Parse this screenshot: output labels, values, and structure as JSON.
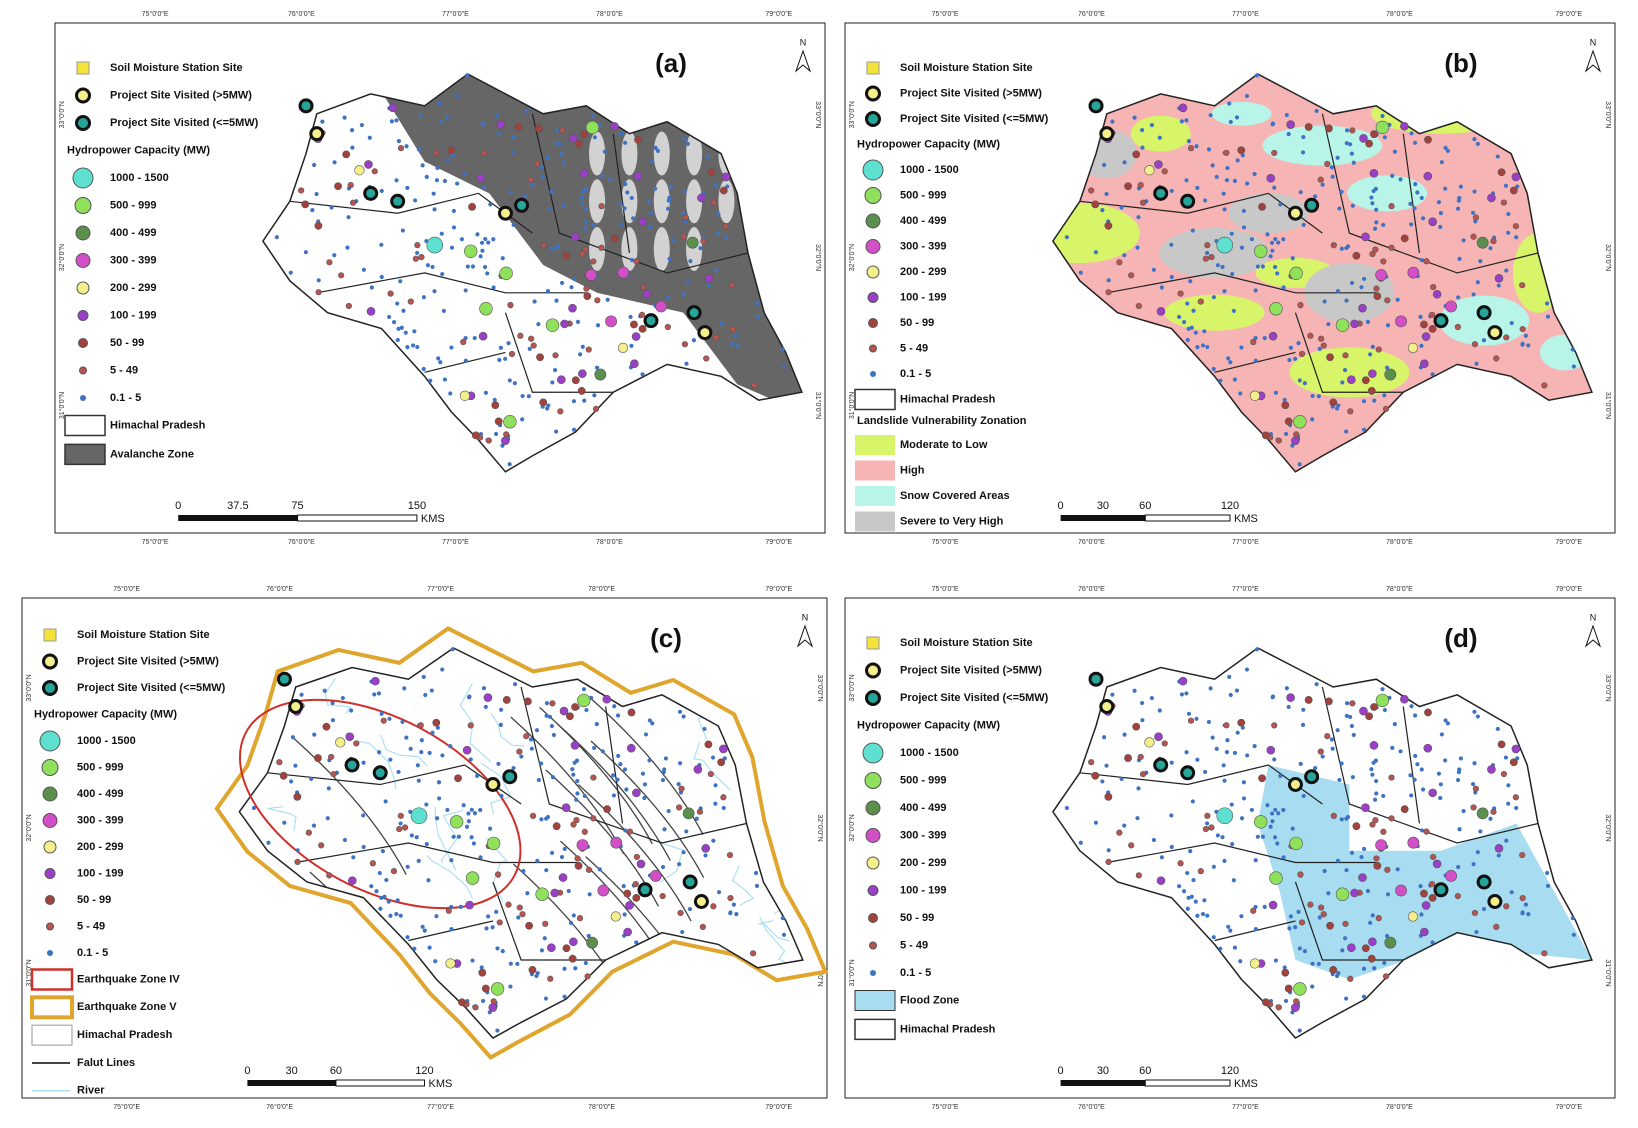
{
  "graticule": {
    "lon": [
      "75°0'0\"E",
      "76°0'0\"E",
      "77°0'0\"E",
      "78°0'0\"E",
      "79°0'0\"E"
    ],
    "lat": [
      "33°0'0\"N",
      "32°0'0\"N",
      "31°0'0\"N"
    ]
  },
  "panels": [
    {
      "label": "(a)",
      "north": "N",
      "legend": {
        "sites": [
          "Soil Moisture Station Site",
          "Project Site Visited (>5MW)",
          "Project Site Visited (<=5MW)"
        ],
        "capacity_title": "Hydropower Capacity (MW)",
        "capacity": [
          "1000 - 1500",
          "500 - 999",
          "400 - 499",
          "300 - 399",
          "200 - 299",
          "100 - 199",
          "50 - 99",
          "5 - 49",
          "0.1 - 5"
        ],
        "layers": [
          "Himachal Pradesh",
          "Avalanche Zone"
        ]
      },
      "scale": {
        "ticks": [
          "0",
          "37.5",
          "75",
          "150"
        ],
        "unit": "KMS"
      }
    },
    {
      "label": "(b)",
      "north": "N",
      "legend": {
        "sites": [
          "Soil Moisture Station Site",
          "Project Site Visited (>5MW)",
          "Project Site Visited (<=5MW)"
        ],
        "capacity_title": "Hydropower Capacity (MW)",
        "capacity": [
          "1000 - 1500",
          "500 - 999",
          "400 - 499",
          "300 - 399",
          "200 - 299",
          "100 - 199",
          "50 - 99",
          "5 - 49",
          "0.1 - 5"
        ],
        "layers": [
          "Himachal Pradesh"
        ],
        "zonation_title": "Landslide Vulnerability Zonation",
        "zonation": [
          "Moderate to Low",
          "High",
          "Snow Covered Areas",
          "Severe to Very High"
        ]
      },
      "scale": {
        "ticks": [
          "0",
          "30",
          "60",
          "120"
        ],
        "unit": "KMS"
      }
    },
    {
      "label": "(c)",
      "north": "N",
      "legend": {
        "sites": [
          "Soil Moisture Station Site",
          "Project Site Visited (>5MW)",
          "Project Site Visited (<=5MW)"
        ],
        "capacity_title": "Hydropower Capacity (MW)",
        "capacity": [
          "1000 - 1500",
          "500 - 999",
          "400 - 499",
          "300 - 399",
          "200 - 299",
          "100 - 199",
          "50 - 99",
          "5 - 49",
          "0.1 - 5"
        ],
        "layers": [
          "Earthquake Zone IV",
          "Earthquake Zone V",
          "Himachal Pradesh",
          "Falut Lines",
          "River"
        ]
      },
      "scale": {
        "ticks": [
          "0",
          "30",
          "60",
          "120"
        ],
        "unit": "KMS"
      }
    },
    {
      "label": "(d)",
      "north": "N",
      "legend": {
        "sites": [
          "Soil Moisture Station Site",
          "Project Site Visited (>5MW)",
          "Project Site Visited (<=5MW)"
        ],
        "capacity_title": "Hydropower Capacity (MW)",
        "capacity": [
          "1000 - 1500",
          "500 - 999",
          "400 - 499",
          "300 - 399",
          "200 - 299",
          "100 - 199",
          "50 - 99",
          "5 - 49",
          "0.1 - 5"
        ],
        "layers": [
          "Flood Zone",
          "Himachal Pradesh"
        ]
      },
      "scale": {
        "ticks": [
          "0",
          "30",
          "60",
          "120"
        ],
        "unit": "KMS"
      }
    }
  ]
}
